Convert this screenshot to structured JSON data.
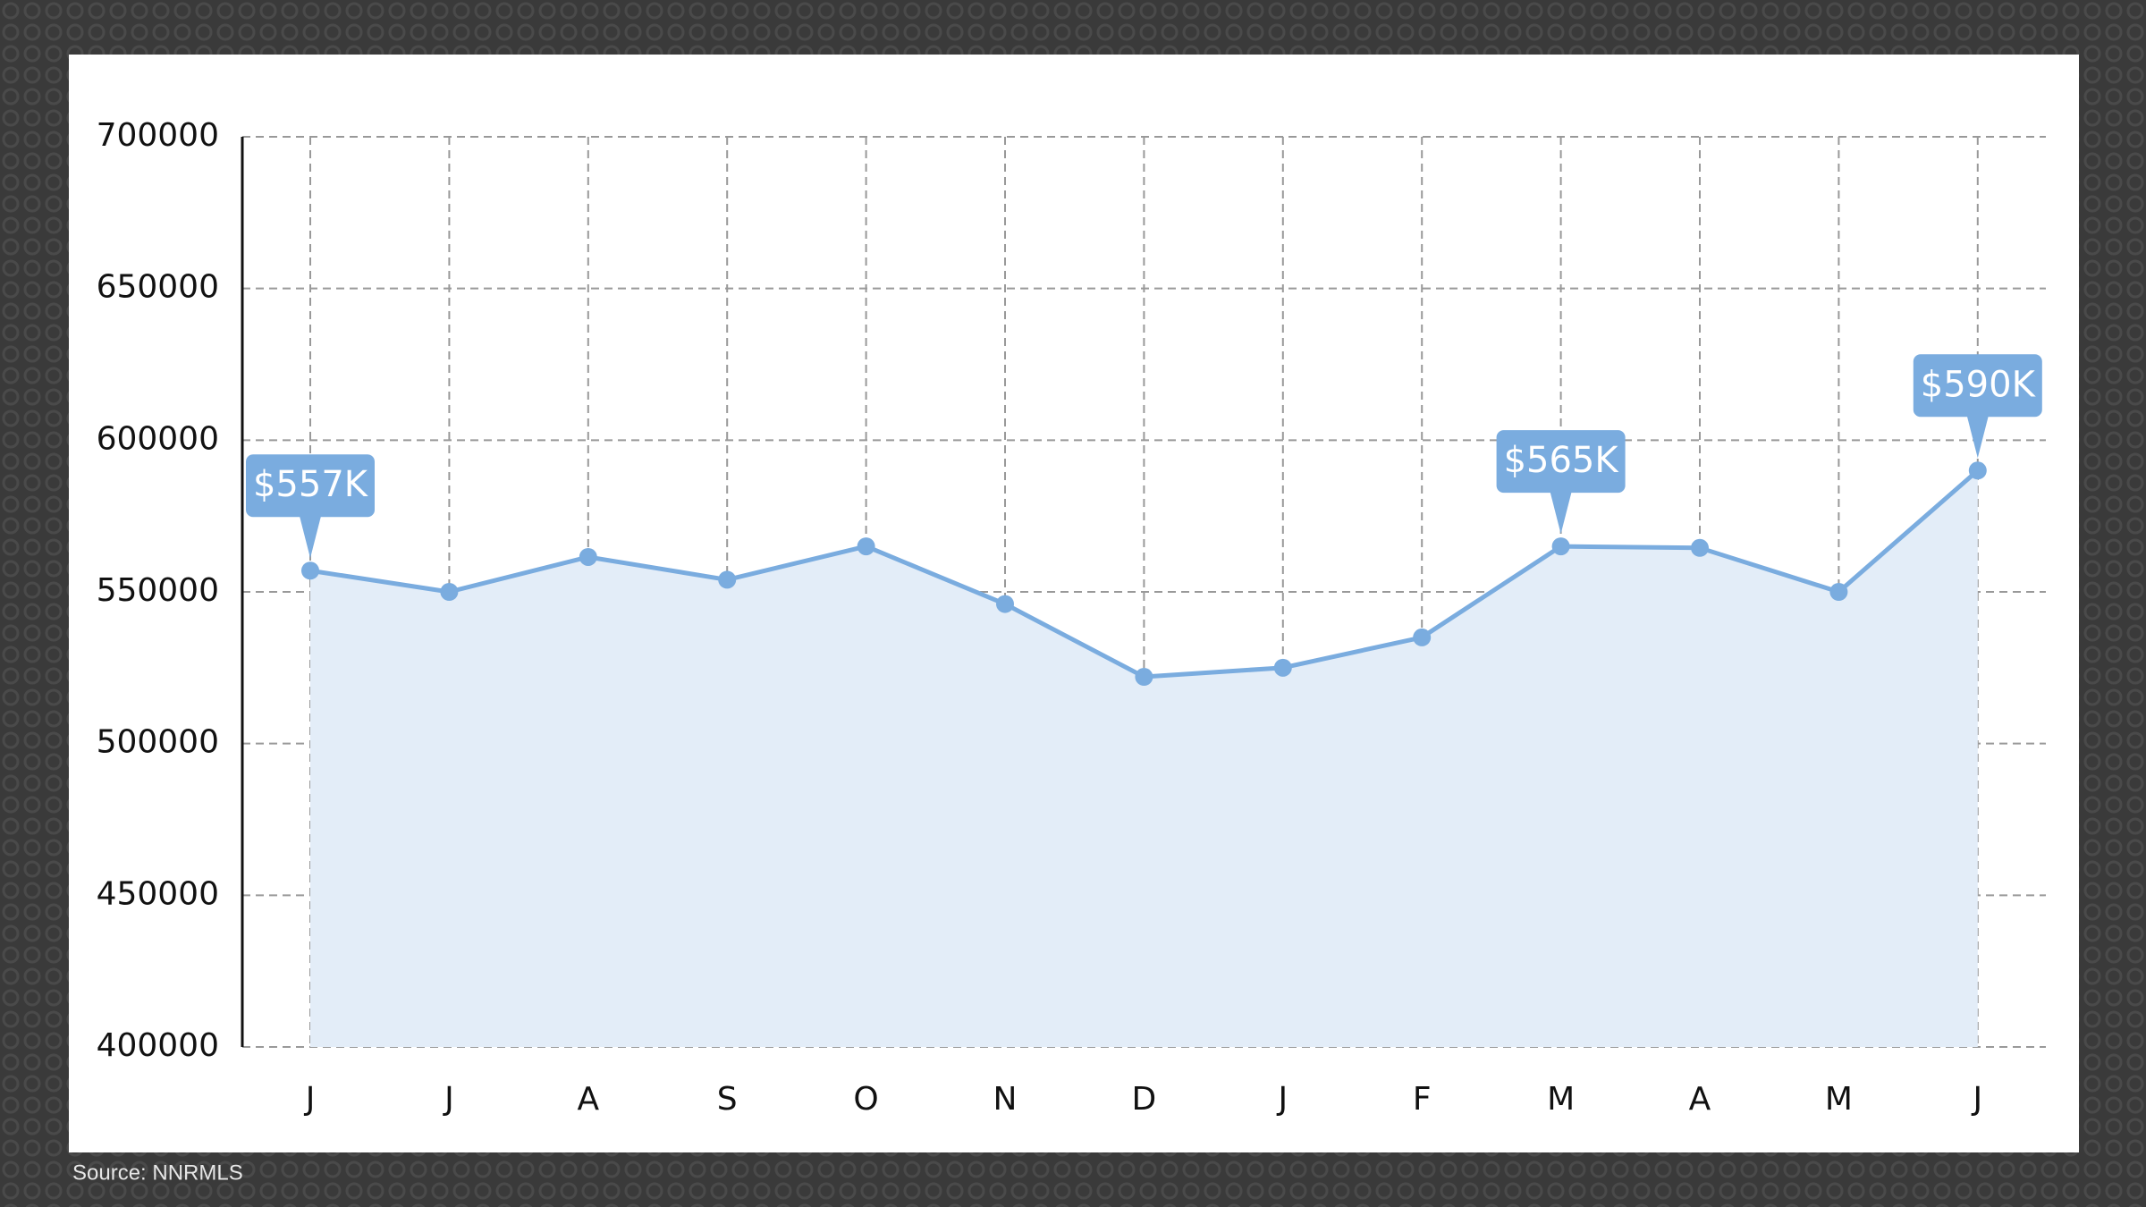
{
  "chart_data": {
    "type": "area",
    "categories": [
      "J",
      "J",
      "A",
      "S",
      "O",
      "N",
      "D",
      "J",
      "F",
      "M",
      "A",
      "M",
      "J"
    ],
    "values": [
      557000,
      550000,
      561500,
      554000,
      565000,
      546000,
      522000,
      525000,
      535000,
      565000,
      564500,
      550000,
      590000
    ],
    "value_labels": [
      "$557K",
      null,
      null,
      null,
      null,
      null,
      null,
      null,
      null,
      "$565K",
      null,
      null,
      "$590K"
    ],
    "color": "#7aacdf",
    "fill_color": "#e3edf8",
    "ylim": [
      400000,
      700000
    ],
    "yticks": [
      400000,
      450000,
      500000,
      550000,
      600000,
      650000,
      700000
    ],
    "grid": true,
    "source": "Source: NNRMLS"
  }
}
